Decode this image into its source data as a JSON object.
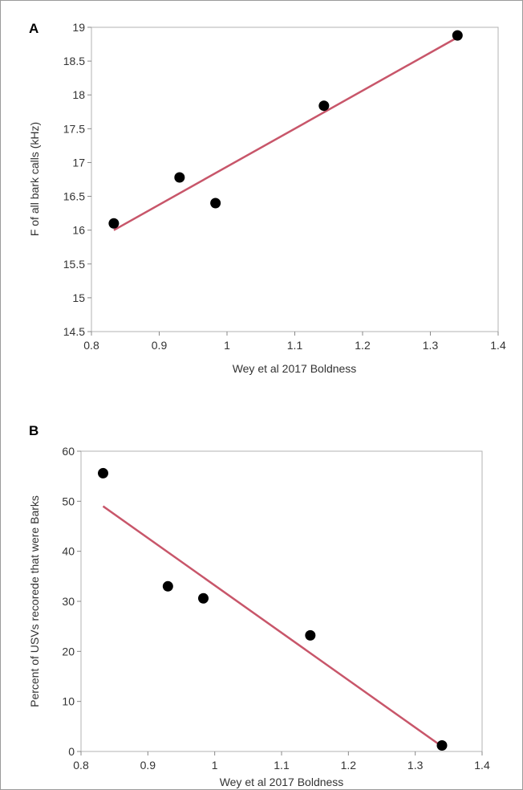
{
  "chart_data": [
    {
      "panel": "A",
      "type": "scatter",
      "xlabel": "Wey et al 2017 Boldness",
      "ylabel": "F of all bark calls (kHz)",
      "xlim": [
        0.8,
        1.4
      ],
      "ylim": [
        14.5,
        19
      ],
      "xticks": [
        0.8,
        0.9,
        1,
        1.1,
        1.2,
        1.3,
        1.4
      ],
      "yticks": [
        14.5,
        15,
        15.5,
        16,
        16.5,
        17,
        17.5,
        18,
        18.5,
        19
      ],
      "points": [
        {
          "x": 0.833,
          "y": 16.1
        },
        {
          "x": 0.93,
          "y": 16.78
        },
        {
          "x": 0.983,
          "y": 16.4
        },
        {
          "x": 1.143,
          "y": 17.84
        },
        {
          "x": 1.34,
          "y": 18.88
        }
      ],
      "fit_line": {
        "x": [
          0.833,
          1.34
        ],
        "y": [
          16.0,
          18.85
        ]
      },
      "grid": false,
      "line_color": "#c8566a",
      "point_color": "#000000"
    },
    {
      "panel": "B",
      "type": "scatter",
      "xlabel": "Wey et al 2017 Boldness",
      "ylabel": "Percent of USVs recorede that were Barks",
      "xlim": [
        0.8,
        1.4
      ],
      "ylim": [
        0,
        60
      ],
      "xticks": [
        0.8,
        0.9,
        1,
        1.1,
        1.2,
        1.3,
        1.4
      ],
      "yticks": [
        0,
        10,
        20,
        30,
        40,
        50,
        60
      ],
      "points": [
        {
          "x": 0.833,
          "y": 55.6
        },
        {
          "x": 0.93,
          "y": 33.0
        },
        {
          "x": 0.983,
          "y": 30.6
        },
        {
          "x": 1.143,
          "y": 23.2
        },
        {
          "x": 1.34,
          "y": 1.2
        }
      ],
      "fit_line": {
        "x": [
          0.833,
          1.34
        ],
        "y": [
          49.0,
          1.0
        ]
      },
      "grid": false,
      "line_color": "#c8566a",
      "point_color": "#000000"
    }
  ]
}
